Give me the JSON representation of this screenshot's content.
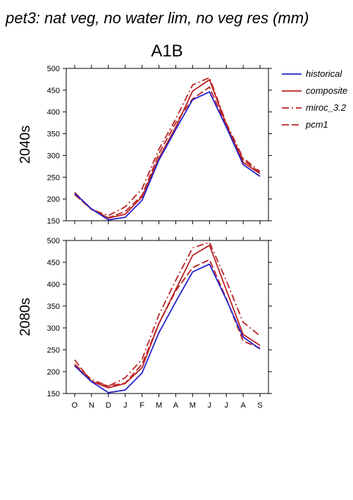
{
  "title": "pet3: nat veg, no water lim, no veg res (mm)",
  "scenario": "A1B",
  "colors": {
    "historical": "#2222cc",
    "future": "#bb2222"
  },
  "legend": [
    {
      "label": "historical",
      "color": "#2222cc",
      "dash": "solid"
    },
    {
      "label": "composite",
      "color": "#bb2222",
      "dash": "solid"
    },
    {
      "label": "miroc_3.2",
      "color": "#bb2222",
      "dash": "dashdot"
    },
    {
      "label": "pcm1",
      "color": "#bb2222",
      "dash": "dash"
    }
  ],
  "chart_data": [
    {
      "type": "line",
      "panel_label": "2040s",
      "categories": [
        "O",
        "N",
        "D",
        "J",
        "F",
        "M",
        "A",
        "M",
        "J",
        "J",
        "A",
        "S"
      ],
      "ylim": [
        150,
        500
      ],
      "yticks": [
        150,
        200,
        250,
        300,
        350,
        400,
        450,
        500
      ],
      "series": [
        {
          "name": "historical",
          "values": [
            213,
            177,
            152,
            158,
            197,
            289,
            360,
            428,
            446,
            365,
            279,
            252
          ]
        },
        {
          "name": "composite",
          "values": [
            213,
            177,
            156,
            165,
            205,
            294,
            365,
            448,
            474,
            371,
            284,
            258
          ]
        },
        {
          "name": "miroc_3.2",
          "values": [
            215,
            176,
            162,
            182,
            223,
            314,
            384,
            462,
            479,
            374,
            294,
            263
          ]
        },
        {
          "name": "pcm1",
          "values": [
            210,
            176,
            157,
            171,
            208,
            304,
            375,
            430,
            457,
            368,
            290,
            260
          ]
        }
      ]
    },
    {
      "type": "line",
      "panel_label": "2080s",
      "categories": [
        "O",
        "N",
        "D",
        "J",
        "F",
        "M",
        "A",
        "M",
        "J",
        "J",
        "A",
        "S"
      ],
      "ylim": [
        150,
        500
      ],
      "yticks": [
        150,
        200,
        250,
        300,
        350,
        400,
        450,
        500
      ],
      "series": [
        {
          "name": "historical",
          "values": [
            213,
            177,
            152,
            158,
            197,
            289,
            360,
            428,
            446,
            365,
            279,
            252
          ]
        },
        {
          "name": "composite",
          "values": [
            215,
            178,
            163,
            173,
            209,
            310,
            388,
            466,
            489,
            387,
            285,
            260
          ]
        },
        {
          "name": "miroc_3.2",
          "values": [
            217,
            182,
            167,
            186,
            228,
            330,
            409,
            483,
            496,
            408,
            313,
            282
          ]
        },
        {
          "name": "pcm1",
          "values": [
            227,
            177,
            167,
            174,
            217,
            310,
            385,
            438,
            456,
            367,
            270,
            254
          ]
        }
      ]
    }
  ]
}
